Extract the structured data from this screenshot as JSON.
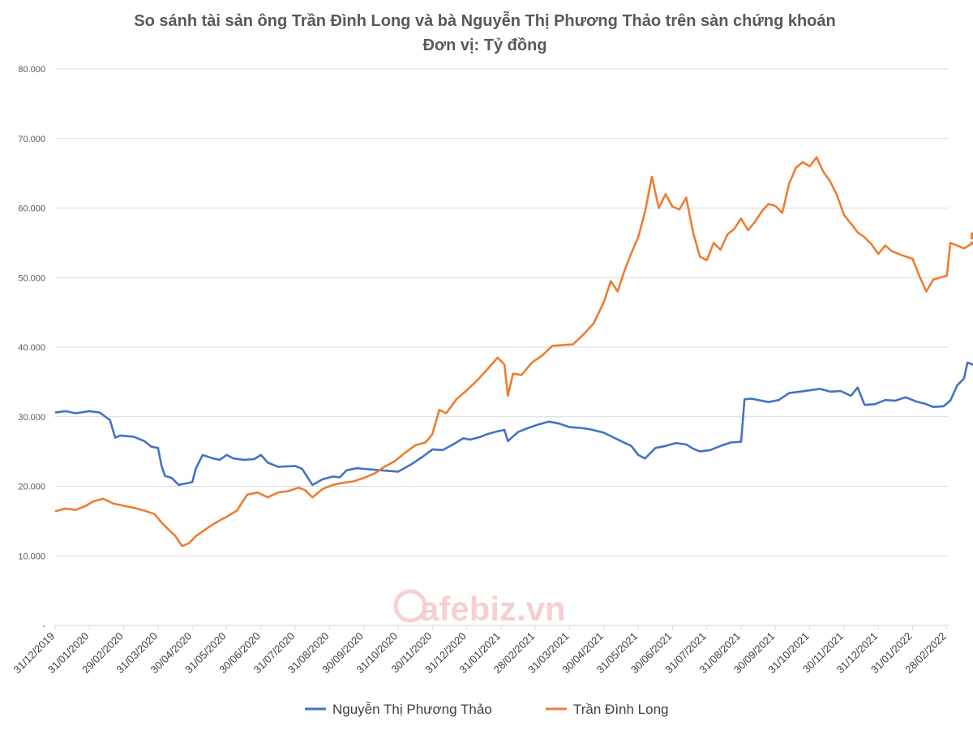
{
  "chart_data": {
    "type": "line",
    "title": "So sánh tài sản ông Trần Đình Long và bà Nguyễn Thị Phương Thảo trên sàn chứng khoán",
    "subtitle": "Đơn vị: Tỷ đồng",
    "ylim": [
      0,
      80000
    ],
    "y_ticks": [
      "-",
      "10.000",
      "20.000",
      "30.000",
      "40.000",
      "50.000",
      "60.000",
      "70.000",
      "80.000"
    ],
    "x_ticks": [
      "31/12/2019",
      "31/01/2020",
      "29/02/2020",
      "31/03/2020",
      "30/04/2020",
      "31/05/2020",
      "30/06/2020",
      "31/07/2020",
      "31/08/2020",
      "30/09/2020",
      "31/10/2020",
      "30/11/2020",
      "31/12/2020",
      "31/01/2021",
      "28/02/2021",
      "31/03/2021",
      "30/04/2021",
      "31/05/2021",
      "30/06/2021",
      "31/07/2021",
      "31/08/2021",
      "30/09/2021",
      "31/10/2021",
      "30/11/2021",
      "31/12/2021",
      "31/01/2022",
      "28/02/2022"
    ],
    "grid": true,
    "legend_position": "bottom",
    "series": [
      {
        "name": "Nguyễn Thị Phương Thảo",
        "color": "#4472c4",
        "end_label": "37.768",
        "points": [
          [
            0,
            30600
          ],
          [
            0.3,
            30800
          ],
          [
            0.6,
            30500
          ],
          [
            1.0,
            30800
          ],
          [
            1.3,
            30600
          ],
          [
            1.6,
            29500
          ],
          [
            1.75,
            27000
          ],
          [
            1.9,
            27300
          ],
          [
            2.3,
            27100
          ],
          [
            2.6,
            26500
          ],
          [
            2.8,
            25700
          ],
          [
            3.0,
            25500
          ],
          [
            3.1,
            23000
          ],
          [
            3.2,
            21500
          ],
          [
            3.4,
            21200
          ],
          [
            3.6,
            20200
          ],
          [
            3.8,
            20400
          ],
          [
            4.0,
            20600
          ],
          [
            4.1,
            22500
          ],
          [
            4.3,
            24500
          ],
          [
            4.6,
            24000
          ],
          [
            4.8,
            23800
          ],
          [
            5.0,
            24500
          ],
          [
            5.2,
            24000
          ],
          [
            5.5,
            23800
          ],
          [
            5.8,
            23900
          ],
          [
            6.0,
            24500
          ],
          [
            6.2,
            23400
          ],
          [
            6.5,
            22800
          ],
          [
            7.0,
            22900
          ],
          [
            7.2,
            22500
          ],
          [
            7.5,
            20200
          ],
          [
            7.8,
            21000
          ],
          [
            8.1,
            21400
          ],
          [
            8.3,
            21300
          ],
          [
            8.5,
            22300
          ],
          [
            8.8,
            22600
          ],
          [
            9.0,
            22500
          ],
          [
            9.5,
            22300
          ],
          [
            10.0,
            22100
          ],
          [
            10.4,
            23200
          ],
          [
            10.7,
            24200
          ],
          [
            11.0,
            25300
          ],
          [
            11.3,
            25200
          ],
          [
            11.6,
            26000
          ],
          [
            11.9,
            26900
          ],
          [
            12.1,
            26700
          ],
          [
            12.4,
            27100
          ],
          [
            12.6,
            27500
          ],
          [
            12.9,
            27900
          ],
          [
            13.1,
            28100
          ],
          [
            13.2,
            26500
          ],
          [
            13.5,
            27800
          ],
          [
            13.8,
            28400
          ],
          [
            14.1,
            28900
          ],
          [
            14.4,
            29300
          ],
          [
            14.7,
            29000
          ],
          [
            15.0,
            28500
          ],
          [
            15.3,
            28400
          ],
          [
            15.6,
            28200
          ],
          [
            16.0,
            27700
          ],
          [
            16.5,
            26500
          ],
          [
            16.8,
            25800
          ],
          [
            17.0,
            24500
          ],
          [
            17.2,
            24000
          ],
          [
            17.5,
            25500
          ],
          [
            17.8,
            25800
          ],
          [
            18.1,
            26200
          ],
          [
            18.4,
            26000
          ],
          [
            18.6,
            25400
          ],
          [
            18.8,
            25000
          ],
          [
            19.1,
            25200
          ],
          [
            19.4,
            25800
          ],
          [
            19.7,
            26300
          ],
          [
            20.0,
            26400
          ],
          [
            20.1,
            32500
          ],
          [
            20.3,
            32600
          ],
          [
            20.5,
            32400
          ],
          [
            20.8,
            32100
          ],
          [
            21.1,
            32400
          ],
          [
            21.4,
            33400
          ],
          [
            21.7,
            33600
          ],
          [
            22.0,
            33800
          ],
          [
            22.3,
            34000
          ],
          [
            22.6,
            33600
          ],
          [
            22.9,
            33700
          ],
          [
            23.2,
            33000
          ],
          [
            23.4,
            34200
          ],
          [
            23.6,
            31700
          ],
          [
            23.9,
            31800
          ],
          [
            24.2,
            32400
          ],
          [
            24.5,
            32300
          ],
          [
            24.8,
            32800
          ],
          [
            25.1,
            32200
          ],
          [
            25.4,
            31800
          ],
          [
            25.6,
            31400
          ],
          [
            25.9,
            31500
          ],
          [
            26.1,
            32300
          ],
          [
            26.3,
            34500
          ],
          [
            26.5,
            35500
          ],
          [
            26.6,
            37800
          ],
          [
            26.8,
            37400
          ],
          [
            27.0,
            36500
          ],
          [
            27.2,
            35000
          ],
          [
            27.3,
            34600
          ],
          [
            27.45,
            36000
          ],
          [
            27.6,
            37000
          ],
          [
            27.7,
            37768
          ]
        ]
      },
      {
        "name": "Trần Đình Long",
        "color": "#ed7d31",
        "end_label": "54.238",
        "points": [
          [
            0,
            16400
          ],
          [
            0.3,
            16800
          ],
          [
            0.6,
            16600
          ],
          [
            0.9,
            17200
          ],
          [
            1.1,
            17800
          ],
          [
            1.4,
            18200
          ],
          [
            1.7,
            17500
          ],
          [
            2.0,
            17200
          ],
          [
            2.3,
            16900
          ],
          [
            2.6,
            16500
          ],
          [
            2.9,
            16000
          ],
          [
            3.1,
            14800
          ],
          [
            3.3,
            13800
          ],
          [
            3.5,
            12900
          ],
          [
            3.7,
            11400
          ],
          [
            3.9,
            11800
          ],
          [
            4.1,
            12800
          ],
          [
            4.3,
            13500
          ],
          [
            4.5,
            14200
          ],
          [
            4.8,
            15100
          ],
          [
            5.0,
            15600
          ],
          [
            5.3,
            16500
          ],
          [
            5.6,
            18800
          ],
          [
            5.9,
            19100
          ],
          [
            6.2,
            18400
          ],
          [
            6.5,
            19100
          ],
          [
            6.8,
            19300
          ],
          [
            7.1,
            19800
          ],
          [
            7.3,
            19400
          ],
          [
            7.5,
            18400
          ],
          [
            7.8,
            19600
          ],
          [
            8.1,
            20200
          ],
          [
            8.4,
            20500
          ],
          [
            8.7,
            20700
          ],
          [
            9.0,
            21200
          ],
          [
            9.3,
            21800
          ],
          [
            9.6,
            22800
          ],
          [
            9.9,
            23600
          ],
          [
            10.2,
            24800
          ],
          [
            10.5,
            25900
          ],
          [
            10.8,
            26300
          ],
          [
            11.0,
            27500
          ],
          [
            11.2,
            31000
          ],
          [
            11.4,
            30500
          ],
          [
            11.7,
            32500
          ],
          [
            12.0,
            33800
          ],
          [
            12.3,
            35200
          ],
          [
            12.6,
            36800
          ],
          [
            12.9,
            38500
          ],
          [
            13.1,
            37500
          ],
          [
            13.2,
            33000
          ],
          [
            13.35,
            36200
          ],
          [
            13.6,
            36000
          ],
          [
            13.9,
            37800
          ],
          [
            14.2,
            38800
          ],
          [
            14.5,
            40200
          ],
          [
            14.8,
            40300
          ],
          [
            15.1,
            40400
          ],
          [
            15.4,
            41800
          ],
          [
            15.7,
            43400
          ],
          [
            16.0,
            46500
          ],
          [
            16.2,
            49500
          ],
          [
            16.4,
            48000
          ],
          [
            16.6,
            51000
          ],
          [
            16.8,
            53500
          ],
          [
            17.0,
            55800
          ],
          [
            17.2,
            59500
          ],
          [
            17.4,
            64500
          ],
          [
            17.6,
            60000
          ],
          [
            17.8,
            62000
          ],
          [
            18.0,
            60200
          ],
          [
            18.2,
            59800
          ],
          [
            18.4,
            61500
          ],
          [
            18.6,
            56500
          ],
          [
            18.8,
            53000
          ],
          [
            19.0,
            52500
          ],
          [
            19.2,
            55000
          ],
          [
            19.4,
            54000
          ],
          [
            19.6,
            56200
          ],
          [
            19.8,
            57000
          ],
          [
            20.0,
            58500
          ],
          [
            20.2,
            56800
          ],
          [
            20.4,
            58000
          ],
          [
            20.6,
            59500
          ],
          [
            20.8,
            60600
          ],
          [
            21.0,
            60300
          ],
          [
            21.2,
            59300
          ],
          [
            21.4,
            63500
          ],
          [
            21.6,
            65800
          ],
          [
            21.8,
            66600
          ],
          [
            22.0,
            66000
          ],
          [
            22.2,
            67300
          ],
          [
            22.4,
            65200
          ],
          [
            22.6,
            63800
          ],
          [
            22.8,
            61800
          ],
          [
            23.0,
            59000
          ],
          [
            23.2,
            57800
          ],
          [
            23.4,
            56500
          ],
          [
            23.6,
            55800
          ],
          [
            23.8,
            54800
          ],
          [
            24.0,
            53400
          ],
          [
            24.2,
            54600
          ],
          [
            24.4,
            53800
          ],
          [
            24.7,
            53200
          ],
          [
            25.0,
            52700
          ],
          [
            25.2,
            50200
          ],
          [
            25.4,
            48000
          ],
          [
            25.6,
            49700
          ],
          [
            25.8,
            50000
          ],
          [
            26.0,
            50300
          ],
          [
            26.1,
            55000
          ],
          [
            26.3,
            54600
          ],
          [
            26.5,
            54200
          ],
          [
            26.7,
            54800
          ],
          [
            26.9,
            55400
          ],
          [
            27.0,
            57500
          ],
          [
            27.15,
            59300
          ],
          [
            27.3,
            56500
          ],
          [
            27.4,
            54000
          ],
          [
            27.55,
            54100
          ],
          [
            27.7,
            54238
          ]
        ]
      }
    ]
  },
  "watermark": {
    "logo_text": "cafebiz.vn"
  }
}
